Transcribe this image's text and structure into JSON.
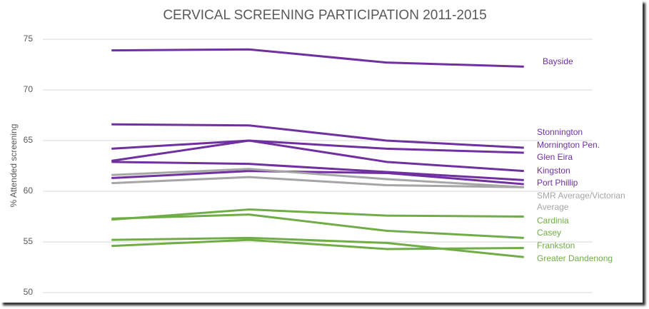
{
  "chart_data": {
    "type": "line",
    "title": "CERVICAL SCREENING PARTICIPATION 2011-2015",
    "y_label": "% Attended screening",
    "categories": [
      null,
      null,
      null,
      null
    ],
    "ylim": [
      50,
      75
    ],
    "yticks": [
      50,
      55,
      60,
      65,
      70,
      75
    ],
    "grid": true,
    "series": [
      {
        "name": "Bayside",
        "color": "#7030a0",
        "values": [
          73.9,
          74.0,
          72.7,
          72.3
        ]
      },
      {
        "name": "Stonnington",
        "color": "#7030a0",
        "values": [
          66.6,
          66.5,
          65.0,
          64.3
        ]
      },
      {
        "name": "Mornington Pen.",
        "color": "#7030a0",
        "values": [
          64.2,
          65.0,
          64.2,
          63.8
        ]
      },
      {
        "name": "Glen Eira",
        "color": "#7030a0",
        "values": [
          63.0,
          65.0,
          62.9,
          62.0
        ]
      },
      {
        "name": "Kingston",
        "color": "#7030a0",
        "values": [
          62.9,
          62.7,
          61.9,
          61.1
        ]
      },
      {
        "name": "Port Phillip",
        "color": "#7030a0",
        "values": [
          61.3,
          62.0,
          61.8,
          60.7
        ]
      },
      {
        "name": "SMR Average/Victorian Average",
        "color": "#a6a6a6",
        "values": [
          61.6,
          62.2,
          61.2,
          60.4
        ]
      },
      {
        "name": null,
        "color": "#a6a6a6",
        "values": [
          60.8,
          61.4,
          60.6,
          60.4
        ]
      },
      {
        "name": "Cardinia",
        "color": "#70ad47",
        "values": [
          57.2,
          58.2,
          57.6,
          57.5
        ]
      },
      {
        "name": "Casey",
        "color": "#70ad47",
        "values": [
          57.3,
          57.7,
          56.1,
          55.4
        ]
      },
      {
        "name": "Frankston",
        "color": "#70ad47",
        "values": [
          54.6,
          55.2,
          54.3,
          54.4
        ]
      },
      {
        "name": "Greater Dandenong",
        "color": "#70ad47",
        "values": [
          55.2,
          55.4,
          54.9,
          53.5
        ]
      }
    ]
  }
}
